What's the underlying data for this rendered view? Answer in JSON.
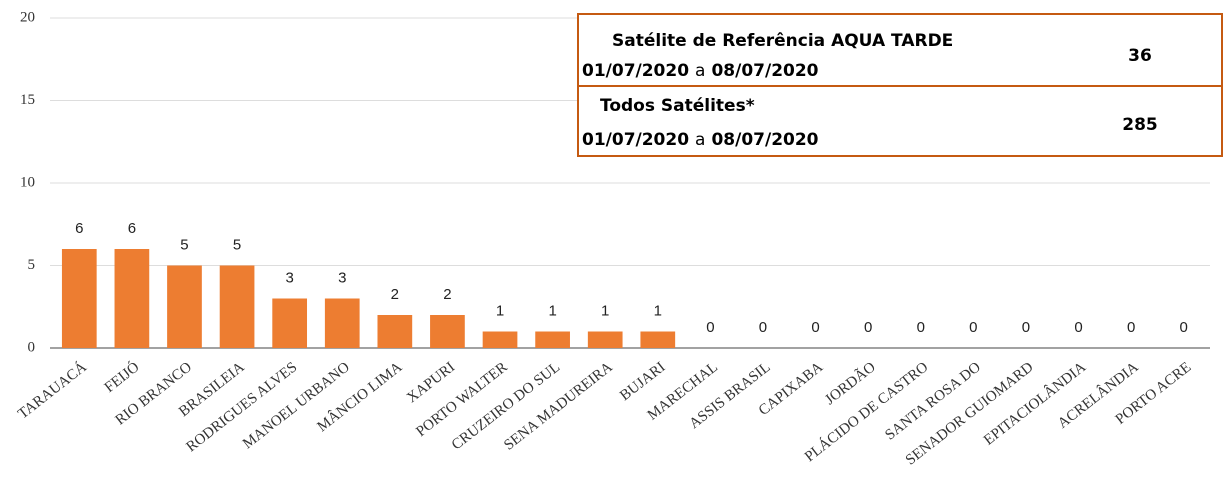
{
  "chart_data": {
    "type": "bar",
    "categories": [
      "TARAUACÁ",
      "FEIJÓ",
      "RIO BRANCO",
      "BRASILEIA",
      "RODRIGUES ALVES",
      "MANOEL URBANO",
      "MÂNCIO LIMA",
      "XAPURI",
      "PORTO WALTER",
      "CRUZEIRO DO SUL",
      "SENA MADUREIRA",
      "BUJARI",
      "MARECHAL",
      "ASSIS BRASIL",
      "CAPIXABA",
      "JORDÃO",
      "PLÁCIDO DE CASTRO",
      "SANTA ROSA DO",
      "SENADOR GUIOMARD",
      "EPITACIOLÂNDIA",
      "ACRELÂNDIA",
      "PORTO ACRE"
    ],
    "values": [
      6,
      6,
      5,
      5,
      3,
      3,
      2,
      2,
      1,
      1,
      1,
      1,
      0,
      0,
      0,
      0,
      0,
      0,
      0,
      0,
      0,
      0
    ],
    "color": "#ed7d31",
    "ylim": [
      0,
      20
    ],
    "yticks": [
      0,
      5,
      10,
      15,
      20
    ],
    "grid": true
  },
  "info_box": {
    "rows": [
      {
        "label": "Satélite de Referência AQUA TARDE",
        "date_from": "01/07/2020",
        "connector": "a",
        "date_to": "08/07/2020",
        "value": "36"
      },
      {
        "label": "Todos Satélites*",
        "date_from": "01/07/2020",
        "connector": "a",
        "date_to": "08/07/2020",
        "value": "285"
      }
    ]
  }
}
